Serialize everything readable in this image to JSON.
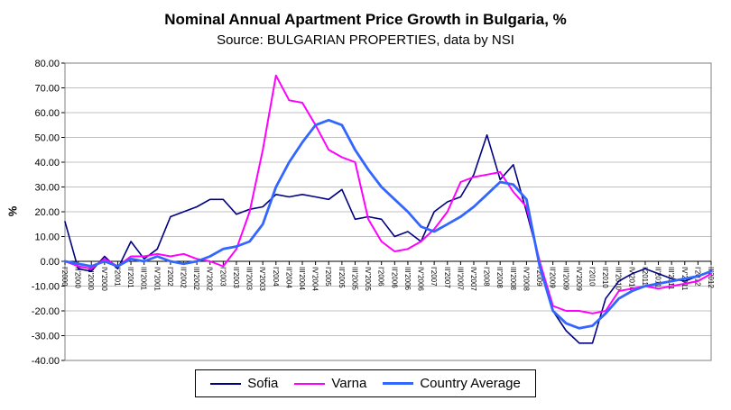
{
  "title": "Nominal Annual Apartment Price Growth in Bulgaria, %",
  "subtitle": "Source: BULGARIAN PROPERTIES, data by NSI",
  "chart_data": {
    "type": "line",
    "title": "Nominal Annual Apartment Price Growth in Bulgaria, %",
    "subtitle": "Source: BULGARIAN PROPERTIES, data by NSI",
    "xlabel": "",
    "ylabel": "%",
    "ylim": [
      -40,
      80
    ],
    "ytick_step": 10,
    "ytick_decimals": 2,
    "grid": true,
    "legend_position": "bottom",
    "grid_color": "#c0c0c0",
    "axis_color": "#808080",
    "zero_axis_color": "#000000",
    "categories": [
      "I'2000",
      "II'2000",
      "III'2000",
      "IV'2000",
      "I'2001",
      "II'2001",
      "III'2001",
      "IV'2001",
      "I'2002",
      "II'2002",
      "III'2002",
      "IV'2002",
      "I'2003",
      "II'2003",
      "III'2003",
      "IV'2003",
      "I'2004",
      "II'2004",
      "III'2004",
      "IV'2004",
      "I'2005",
      "II'2005",
      "III'2005",
      "IV'2005",
      "I'2006",
      "II'2006",
      "III'2006",
      "IV'2006",
      "I'2007",
      "II'2007",
      "III'2007",
      "IV'2007",
      "I'2008",
      "II'2008",
      "III'2008",
      "IV'2008",
      "I'2009",
      "II'2009",
      "III'2009",
      "IV'2009",
      "I'2010",
      "II'2010",
      "III'2010",
      "IV'2010",
      "I'2011",
      "II'2011",
      "III'2011",
      "IV'2011",
      "I'2012",
      "II'2012"
    ],
    "series": [
      {
        "name": "Sofia",
        "color": "#000080",
        "line_width": 1.6,
        "values": [
          16,
          -3,
          -4,
          2,
          -3,
          8,
          1,
          5,
          18,
          20,
          22,
          25,
          25,
          19,
          21,
          22,
          27,
          26,
          27,
          26,
          25,
          29,
          17,
          18,
          17,
          10,
          12,
          8,
          20,
          24,
          26,
          35,
          51,
          33,
          39,
          20,
          0,
          -20,
          -28,
          -33,
          -33,
          -15,
          -8,
          -5,
          -3,
          -5,
          -7,
          -8,
          -6,
          -4
        ]
      },
      {
        "name": "Varna",
        "color": "#FF00FF",
        "line_width": 2,
        "values": [
          0,
          -2,
          -3,
          1,
          -2,
          2,
          2,
          3,
          2,
          3,
          1,
          0,
          -2,
          5,
          20,
          45,
          75,
          65,
          64,
          55,
          45,
          42,
          40,
          17,
          8,
          4,
          5,
          8,
          13,
          20,
          32,
          34,
          35,
          36,
          28,
          22,
          0,
          -18,
          -20,
          -20,
          -21,
          -20,
          -12,
          -11,
          -10,
          -11,
          -10,
          -9,
          -8,
          -5
        ]
      },
      {
        "name": "Country Average",
        "color": "#3366FF",
        "line_width": 2.8,
        "values": [
          0,
          -1,
          -2,
          0,
          -2,
          1,
          0,
          2,
          0,
          -1,
          0,
          2,
          5,
          6,
          8,
          15,
          30,
          40,
          48,
          55,
          57,
          55,
          45,
          37,
          30,
          25,
          20,
          14,
          12,
          15,
          18,
          22,
          27,
          32,
          31,
          25,
          -2,
          -20,
          -25,
          -27,
          -26,
          -21,
          -15,
          -12,
          -10,
          -9,
          -8,
          -7,
          -6,
          -4
        ]
      }
    ]
  }
}
